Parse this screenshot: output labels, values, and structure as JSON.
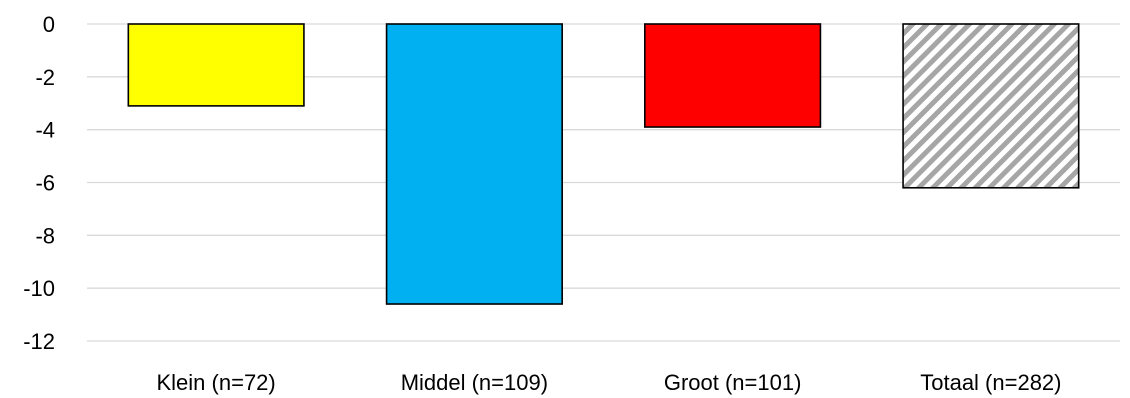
{
  "chart_data": {
    "type": "bar",
    "title": "",
    "xlabel": "",
    "ylabel": "",
    "categories": [
      "Klein (n=72)",
      "Middel (n=109)",
      "Groot (n=101)",
      "Totaal (n=282)"
    ],
    "values": [
      -3.1,
      -10.6,
      -3.9,
      -6.2
    ],
    "ylim": [
      -12,
      0
    ],
    "yticks": [
      0,
      -2,
      -4,
      -6,
      -8,
      -10,
      -12
    ],
    "ytick_labels": [
      "0",
      "-2",
      "-4",
      "-6",
      "-8",
      "-10",
      "-12"
    ],
    "grid": true,
    "legend": "none",
    "bar_styles": [
      {
        "fill": "#ffff00",
        "pattern": "solid"
      },
      {
        "fill": "#00b0f0",
        "pattern": "solid"
      },
      {
        "fill": "#ff0000",
        "pattern": "solid"
      },
      {
        "fill": "#a6a6a6",
        "pattern": "diagonal-stripes"
      }
    ]
  }
}
